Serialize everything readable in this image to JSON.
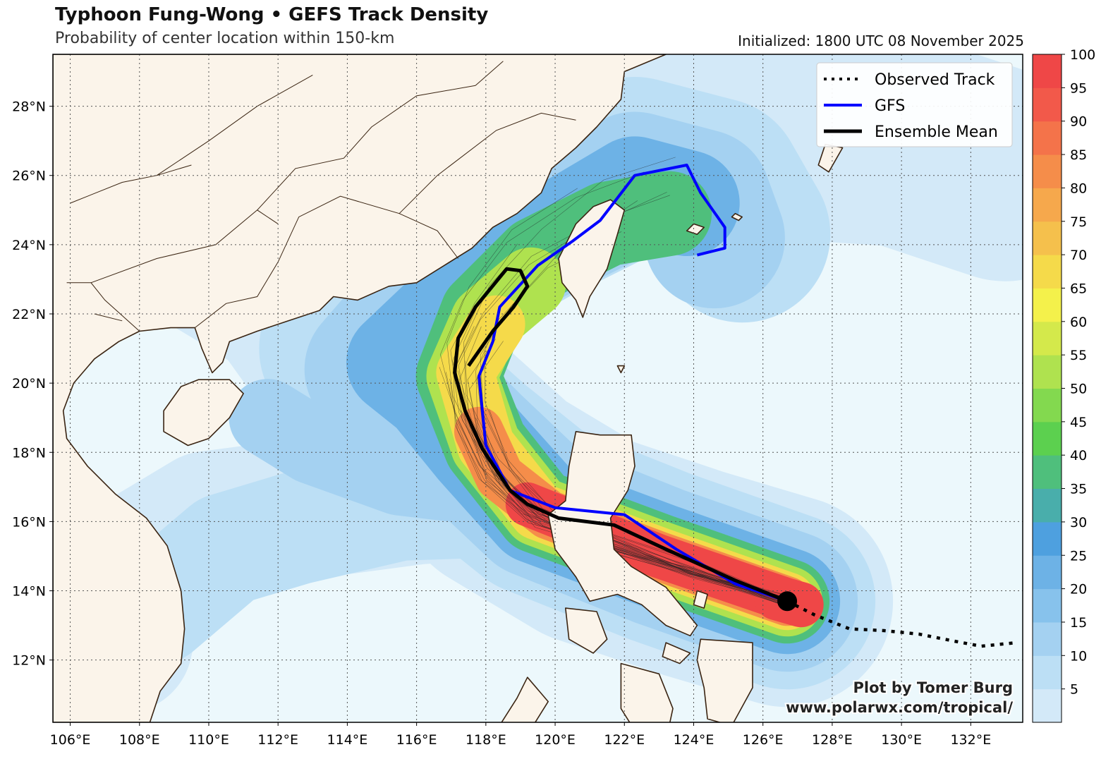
{
  "header": {
    "title": "Typhoon Fung-Wong • GEFS Track Density",
    "subtitle": "Probability of center location within 150-km",
    "initialized": "Initialized: 1800 UTC 08 November 2025"
  },
  "legend": {
    "items": [
      {
        "label": "Observed Track",
        "style": "dotted",
        "color": "#000000"
      },
      {
        "label": "GFS",
        "style": "solid",
        "color": "#0000ff"
      },
      {
        "label": "Ensemble Mean",
        "style": "solid",
        "color": "#000000"
      }
    ]
  },
  "credit": {
    "line1": "Plot by Tomer Burg",
    "line2": "www.polarwx.com/tropical/"
  },
  "axes": {
    "lon_labels": [
      "106°E",
      "108°E",
      "110°E",
      "112°E",
      "114°E",
      "116°E",
      "118°E",
      "120°E",
      "122°E",
      "124°E",
      "126°E",
      "128°E",
      "130°E",
      "132°E"
    ],
    "lat_labels": [
      "12°N",
      "14°N",
      "16°N",
      "18°N",
      "20°N",
      "22°N",
      "24°N",
      "26°N",
      "28°N"
    ],
    "lon_range": [
      105.5,
      133.5
    ],
    "lat_range": [
      10.2,
      29.5
    ]
  },
  "colorbar": {
    "labels": [
      "5",
      "10",
      "15",
      "20",
      "25",
      "30",
      "35",
      "40",
      "45",
      "50",
      "55",
      "60",
      "65",
      "70",
      "75",
      "80",
      "85",
      "90",
      "95",
      "100"
    ],
    "colors": [
      "#d3e9f8",
      "#bcdff5",
      "#a4d1f1",
      "#87c2ec",
      "#6db2e6",
      "#4ea0df",
      "#49aeab",
      "#4fbf7c",
      "#5cd04f",
      "#83d94f",
      "#afe24f",
      "#d4e94b",
      "#f4f14b",
      "#f5da4a",
      "#f5c04c",
      "#f6a84c",
      "#f58d4a",
      "#f4734a",
      "#f2594a",
      "#ef4747"
    ]
  },
  "tracks": {
    "observed": [
      [
        126.7,
        13.7
      ],
      [
        127.5,
        13.3
      ],
      [
        128.5,
        12.9
      ],
      [
        129.5,
        12.85
      ],
      [
        130.5,
        12.75
      ],
      [
        131.5,
        12.55
      ],
      [
        132.3,
        12.4
      ],
      [
        133.3,
        12.5
      ]
    ],
    "gfs": [
      [
        126.7,
        13.7
      ],
      [
        125.2,
        14.2
      ],
      [
        123.5,
        15.2
      ],
      [
        122,
        16.2
      ],
      [
        120,
        16.4
      ],
      [
        118.7,
        16.9
      ],
      [
        118,
        18.2
      ],
      [
        117.8,
        20.2
      ],
      [
        118.2,
        21.2
      ],
      [
        118.4,
        22.2
      ],
      [
        119.5,
        23.4
      ],
      [
        120.5,
        24.1
      ],
      [
        121.3,
        24.7
      ],
      [
        122.3,
        26.0
      ],
      [
        123.8,
        26.3
      ],
      [
        124.2,
        25.5
      ],
      [
        124.9,
        24.5
      ],
      [
        124.9,
        23.9
      ],
      [
        124.1,
        23.7
      ]
    ],
    "ensemble_mean": [
      [
        126.7,
        13.7
      ],
      [
        125.2,
        14.3
      ],
      [
        123.2,
        15.2
      ],
      [
        121.7,
        15.9
      ],
      [
        120.1,
        16.1
      ],
      [
        119.2,
        16.5
      ],
      [
        118.7,
        16.9
      ],
      [
        117.9,
        18.1
      ],
      [
        117.4,
        19.2
      ],
      [
        117.1,
        20.3
      ],
      [
        117.2,
        21.3
      ],
      [
        117.7,
        22.2
      ],
      [
        118.6,
        23.3
      ],
      [
        119.0,
        23.25
      ],
      [
        119.2,
        22.8
      ],
      [
        118.8,
        22.2
      ],
      [
        118.2,
        21.5
      ],
      [
        117.5,
        20.5
      ]
    ]
  },
  "storm_position": [
    126.7,
    13.7
  ],
  "colors": {
    "ocean": "#ecf8fc",
    "land": "#fbf4ea",
    "coast": "#3a2412",
    "gfs": "#0000ff",
    "mean": "#000000"
  }
}
